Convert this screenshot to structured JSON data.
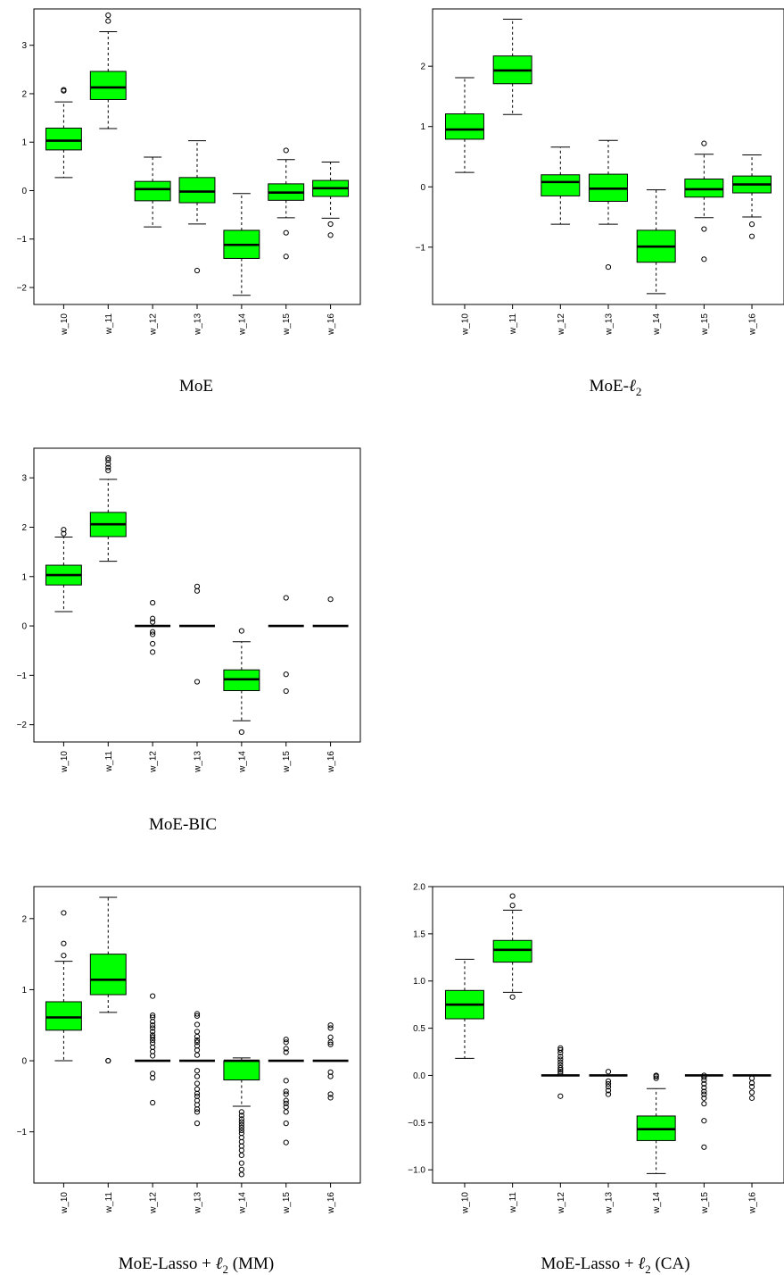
{
  "chart_data": [
    {
      "type": "box",
      "caption": "MoE",
      "categories": [
        "w_10",
        "w_11",
        "w_12",
        "w_13",
        "w_14",
        "w_15",
        "w_16"
      ],
      "ylim": [
        -2.35,
        3.75
      ],
      "yticks": [
        -2,
        -1,
        0,
        1,
        2,
        3
      ],
      "box_color": "#00ff00",
      "boxes": [
        {
          "lw": 0.27,
          "q1": 0.84,
          "med": 1.03,
          "q3": 1.29,
          "uw": 1.83,
          "outliers": [
            2.06,
            2.08
          ]
        },
        {
          "lw": 1.28,
          "q1": 1.88,
          "med": 2.13,
          "q3": 2.46,
          "uw": 3.28,
          "outliers": [
            3.5,
            3.62
          ]
        },
        {
          "lw": -0.75,
          "q1": -0.21,
          "med": 0.03,
          "q3": 0.19,
          "uw": 0.69,
          "outliers": []
        },
        {
          "lw": -0.69,
          "q1": -0.25,
          "med": -0.02,
          "q3": 0.27,
          "uw": 1.03,
          "outliers": [
            -1.65
          ]
        },
        {
          "lw": -2.16,
          "q1": -1.4,
          "med": -1.12,
          "q3": -0.82,
          "uw": -0.06,
          "outliers": []
        },
        {
          "lw": -0.56,
          "q1": -0.2,
          "med": -0.04,
          "q3": 0.14,
          "uw": 0.64,
          "outliers": [
            0.83,
            -0.87,
            -1.36
          ]
        },
        {
          "lw": -0.57,
          "q1": -0.12,
          "med": 0.05,
          "q3": 0.21,
          "uw": 0.59,
          "outliers": [
            -0.69,
            -0.92
          ]
        }
      ]
    },
    {
      "type": "box",
      "caption": "MoE-ℓ2",
      "categories": [
        "w_10",
        "w_11",
        "w_12",
        "w_13",
        "w_14",
        "w_15",
        "w_16"
      ],
      "ylim": [
        -1.95,
        2.95
      ],
      "yticks": [
        -1,
        0,
        1,
        2
      ],
      "box_color": "#00ff00",
      "boxes": [
        {
          "lw": 0.24,
          "q1": 0.79,
          "med": 0.95,
          "q3": 1.21,
          "uw": 1.81,
          "outliers": []
        },
        {
          "lw": 1.2,
          "q1": 1.71,
          "med": 1.93,
          "q3": 2.17,
          "uw": 2.78,
          "outliers": []
        },
        {
          "lw": -0.62,
          "q1": -0.15,
          "med": 0.08,
          "q3": 0.2,
          "uw": 0.66,
          "outliers": []
        },
        {
          "lw": -0.62,
          "q1": -0.24,
          "med": -0.03,
          "q3": 0.21,
          "uw": 0.77,
          "outliers": [
            -1.33
          ]
        },
        {
          "lw": -1.77,
          "q1": -1.25,
          "med": -0.99,
          "q3": -0.72,
          "uw": -0.05,
          "outliers": []
        },
        {
          "lw": -0.51,
          "q1": -0.17,
          "med": -0.04,
          "q3": 0.13,
          "uw": 0.54,
          "outliers": [
            0.72,
            -0.7,
            -1.2
          ]
        },
        {
          "lw": -0.5,
          "q1": -0.1,
          "med": 0.04,
          "q3": 0.18,
          "uw": 0.53,
          "outliers": [
            -0.62,
            -0.82
          ]
        }
      ]
    },
    {
      "type": "box",
      "caption": "MoE-BIC",
      "categories": [
        "w_10",
        "w_11",
        "w_12",
        "w_13",
        "w_14",
        "w_15",
        "w_16"
      ],
      "ylim": [
        -2.35,
        3.6
      ],
      "yticks": [
        -2,
        -1,
        0,
        1,
        2,
        3
      ],
      "box_color": "#00ff00",
      "boxes": [
        {
          "lw": 0.29,
          "q1": 0.83,
          "med": 1.03,
          "q3": 1.23,
          "uw": 1.8,
          "outliers": [
            1.87,
            1.95
          ]
        },
        {
          "lw": 1.31,
          "q1": 1.81,
          "med": 2.06,
          "q3": 2.3,
          "uw": 2.97,
          "outliers": [
            3.15,
            3.21,
            3.28,
            3.36,
            3.4
          ]
        },
        {
          "lw": 0,
          "q1": 0,
          "med": 0,
          "q3": 0,
          "uw": 0,
          "outliers": [
            0.47,
            0.15,
            0.08,
            -0.12,
            -0.17,
            -0.36,
            -0.53
          ]
        },
        {
          "lw": 0,
          "q1": 0,
          "med": 0,
          "q3": 0,
          "uw": 0,
          "outliers": [
            0.8,
            0.71,
            -1.13
          ]
        },
        {
          "lw": -1.92,
          "q1": -1.31,
          "med": -1.08,
          "q3": -0.89,
          "uw": -0.32,
          "outliers": [
            -0.1,
            -2.15
          ]
        },
        {
          "lw": 0,
          "q1": 0,
          "med": 0,
          "q3": 0,
          "uw": 0,
          "outliers": [
            0.57,
            -0.98,
            -1.32
          ]
        },
        {
          "lw": 0,
          "q1": 0,
          "med": 0,
          "q3": 0,
          "uw": 0,
          "outliers": [
            0.54
          ]
        }
      ]
    },
    {
      "type": "box",
      "caption": "MoE-Lasso + ℓ2 (MM)",
      "categories": [
        "w_10",
        "w_11",
        "w_12",
        "w_13",
        "w_14",
        "w_15",
        "w_16"
      ],
      "ylim": [
        -1.72,
        2.45
      ],
      "yticks": [
        -1,
        0,
        1,
        2
      ],
      "box_color": "#00ff00",
      "boxes": [
        {
          "lw": 0,
          "q1": 0.43,
          "med": 0.61,
          "q3": 0.83,
          "uw": 1.4,
          "outliers": [
            1.48,
            1.65,
            2.08
          ]
        },
        {
          "lw": 0.68,
          "q1": 0.93,
          "med": 1.14,
          "q3": 1.5,
          "uw": 2.3,
          "outliers": [
            0,
            0
          ]
        },
        {
          "lw": 0,
          "q1": 0,
          "med": 0,
          "q3": 0,
          "uw": 0,
          "outliers": [
            0.91,
            0.64,
            0.61,
            0.55,
            0.5,
            0.46,
            0.41,
            0.36,
            0.33,
            0.29,
            0.25,
            0.19,
            0.13,
            0.07,
            -0.18,
            -0.24,
            -0.59
          ]
        },
        {
          "lw": 0,
          "q1": 0,
          "med": 0,
          "q3": 0,
          "uw": 0,
          "outliers": [
            0.66,
            0.63,
            0.51,
            0.41,
            0.34,
            0.29,
            0.26,
            0.21,
            0.15,
            0.08,
            -0.14,
            -0.22,
            -0.32,
            -0.4,
            -0.46,
            -0.5,
            -0.56,
            -0.62,
            -0.68,
            -0.72,
            -0.88
          ]
        },
        {
          "lw": -0.64,
          "q1": -0.27,
          "med": 0,
          "q3": 0,
          "uw": 0.04,
          "outliers": [
            -0.72,
            -0.77,
            -0.82,
            -0.86,
            -0.9,
            -0.94,
            -0.98,
            -1.02,
            -1.08,
            -1.14,
            -1.2,
            -1.26,
            -1.33,
            -1.44,
            -1.53,
            -1.6
          ]
        },
        {
          "lw": 0,
          "q1": 0,
          "med": 0,
          "q3": 0,
          "uw": 0,
          "outliers": [
            0.3,
            0.26,
            0.17,
            0.12,
            -0.28,
            -0.43,
            -0.47,
            -0.56,
            -0.6,
            -0.65,
            -0.72,
            -0.88,
            -1.15
          ]
        },
        {
          "lw": 0,
          "q1": 0,
          "med": 0,
          "q3": 0,
          "uw": 0,
          "outliers": [
            0.5,
            0.46,
            0.33,
            0.26,
            0.23,
            -0.16,
            -0.22,
            -0.47,
            -0.52
          ]
        }
      ]
    },
    {
      "type": "box",
      "caption": "MoE-Lasso + ℓ2 (CA)",
      "categories": [
        "w_10",
        "w_11",
        "w_12",
        "w_13",
        "w_14",
        "w_15",
        "w_16"
      ],
      "ylim": [
        -1.14,
        2.0
      ],
      "yticks": [
        -1.0,
        -0.5,
        0.0,
        0.5,
        1.0,
        1.5,
        2.0
      ],
      "box_color": "#00ff00",
      "boxes": [
        {
          "lw": 0.18,
          "q1": 0.6,
          "med": 0.75,
          "q3": 0.9,
          "uw": 1.23,
          "outliers": []
        },
        {
          "lw": 0.88,
          "q1": 1.2,
          "med": 1.33,
          "q3": 1.43,
          "uw": 1.75,
          "outliers": [
            0.83,
            1.8,
            1.9
          ]
        },
        {
          "lw": 0,
          "q1": 0,
          "med": 0,
          "q3": 0,
          "uw": 0,
          "outliers": [
            0.29,
            0.27,
            0.24,
            0.2,
            0.17,
            0.14,
            0.11,
            0.08,
            0.06,
            0.04,
            0.02,
            -0.22
          ]
        },
        {
          "lw": 0,
          "q1": 0,
          "med": 0,
          "q3": 0,
          "uw": 0,
          "outliers": [
            0.04,
            -0.06,
            -0.09,
            -0.12,
            -0.16,
            -0.2
          ]
        },
        {
          "lw": -1.04,
          "q1": -0.69,
          "med": -0.57,
          "q3": -0.43,
          "uw": -0.14,
          "outliers": [
            0.0,
            -0.01,
            -0.03
          ]
        },
        {
          "lw": 0,
          "q1": 0,
          "med": 0,
          "q3": 0,
          "uw": 0,
          "outliers": [
            0.0,
            -0.02,
            -0.05,
            -0.09,
            -0.13,
            -0.17,
            -0.2,
            -0.24,
            -0.3,
            -0.48,
            -0.76
          ]
        },
        {
          "lw": 0,
          "q1": 0,
          "med": 0,
          "q3": 0,
          "uw": 0,
          "outliers": [
            -0.03,
            -0.08,
            -0.12,
            -0.18,
            -0.24
          ]
        }
      ]
    }
  ]
}
